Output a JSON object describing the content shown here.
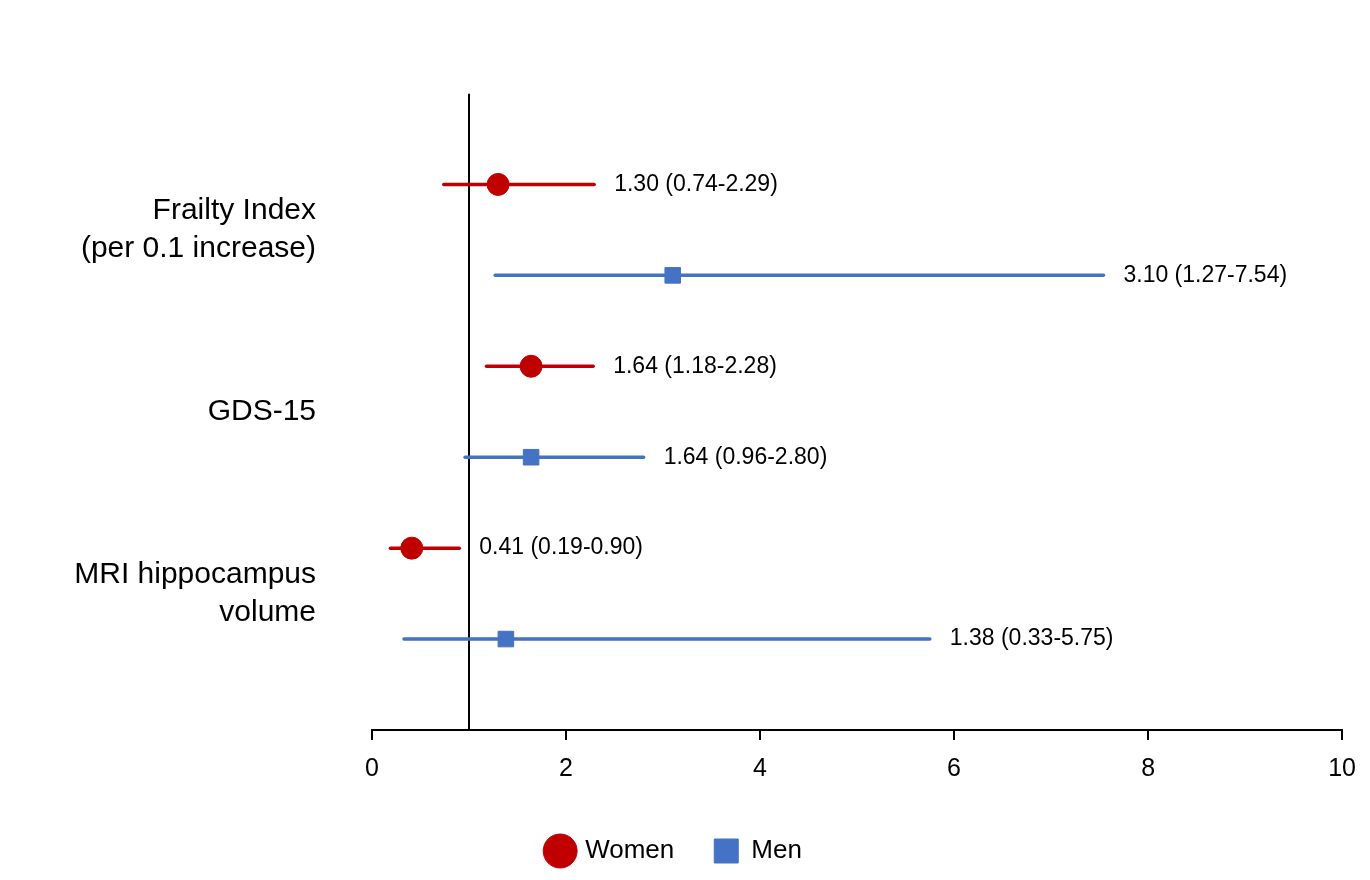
{
  "chart_data": {
    "type": "scatter",
    "orientation": "horizontal",
    "categories": [
      [
        "Frailty Index",
        "(per 0.1 increase)"
      ],
      [
        "GDS-15"
      ],
      [
        "MRI hippocampus",
        "volume"
      ]
    ],
    "series": [
      {
        "name": "Women",
        "color": "#c00000",
        "marker": "circle",
        "values": [
          1.3,
          1.64,
          0.41
        ],
        "lower": [
          0.74,
          1.18,
          0.19
        ],
        "upper": [
          2.29,
          2.28,
          0.9
        ],
        "value_labels": [
          "1.30 (0.74-2.29)",
          "1.64 (1.18-2.28)",
          "0.41 (0.19-0.90)"
        ]
      },
      {
        "name": "Men",
        "color": "#4472c4",
        "marker": "square",
        "values": [
          3.1,
          1.64,
          1.38
        ],
        "lower": [
          1.27,
          0.96,
          0.33
        ],
        "upper": [
          7.54,
          2.8,
          5.75
        ],
        "value_labels": [
          "3.10 (1.27-7.54)",
          "1.64 (0.96-2.80)",
          "1.38 (0.33-5.75)"
        ]
      }
    ],
    "reference_line": 1,
    "xlim": [
      0,
      10
    ],
    "xticks": [
      0,
      2,
      4,
      6,
      8,
      10
    ],
    "grid": false,
    "legend": "bottom",
    "data_labels": true
  }
}
